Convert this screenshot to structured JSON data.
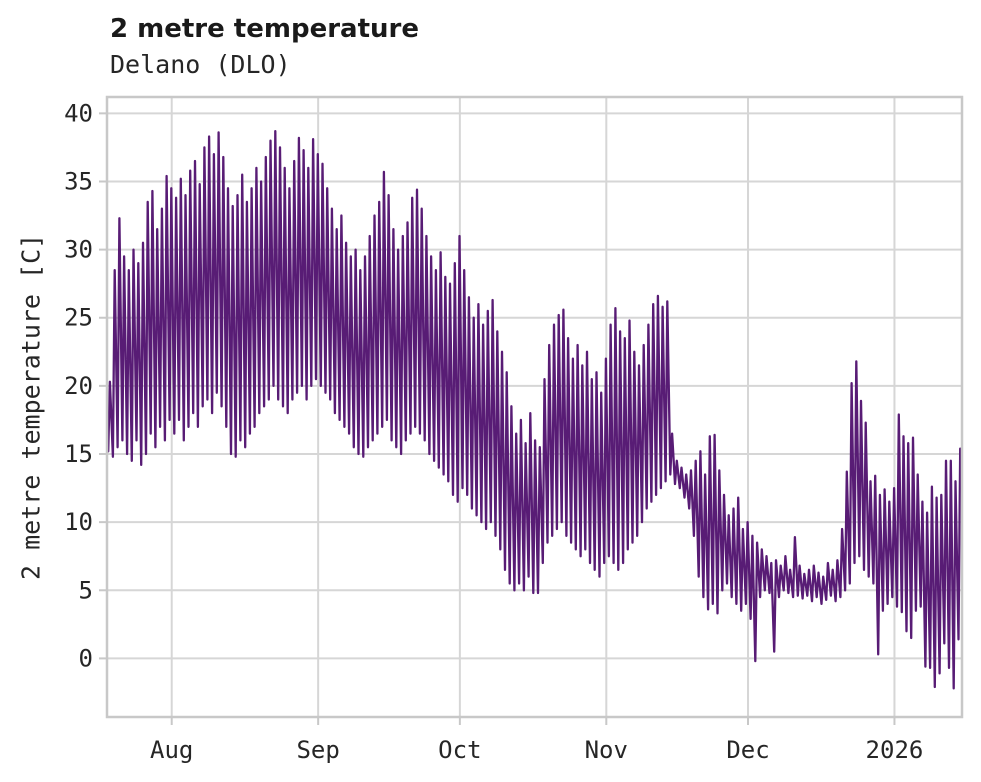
{
  "header": {
    "title": "2 metre temperature",
    "subtitle": "Delano (DLO)"
  },
  "chart_data": {
    "type": "line",
    "title": "2 metre temperature",
    "subtitle": "Delano (DLO)",
    "ylabel": "2 metre temperature [C]",
    "series_name": "2 metre temperature",
    "line_color": "#581c75",
    "grid_color": "#d6d6d6",
    "spine_color": "#c8c8c8",
    "text_color": "#262626",
    "background_color": "#ffffff",
    "grid": "on",
    "legend": "none",
    "y_ticks": [
      0,
      5,
      10,
      15,
      20,
      25,
      30,
      35,
      40
    ],
    "ylim": [
      -4.3,
      41.2
    ],
    "x_tick_labels": [
      "Aug",
      "Sep",
      "Oct",
      "Nov",
      "Dec",
      "2026"
    ],
    "x_tick_days": [
      13.7,
      44.7,
      74.7,
      105.7,
      135.7,
      166.7
    ],
    "total_days": 181,
    "x_range_note": "daily min/max envelope of hourly series; index 0 = 14 days before first Aug tick, index 180 = ~14 days after Jan tick",
    "daily_min": [
      15.2,
      14.8,
      15.5,
      16,
      15,
      14.5,
      16,
      14.2,
      15,
      16.5,
      15.5,
      17,
      16,
      17.5,
      16.5,
      17.5,
      16,
      17,
      18,
      17,
      18.5,
      19,
      18,
      19.5,
      18.5,
      17,
      15,
      14.8,
      16,
      15.5,
      16.5,
      17,
      18,
      18.5,
      19,
      20,
      19,
      18.5,
      18,
      19,
      19.5,
      20,
      19,
      20,
      20.5,
      20,
      19.5,
      19,
      18,
      17.5,
      17,
      16.5,
      15.5,
      15,
      14.8,
      15.5,
      16,
      16.5,
      17,
      17.5,
      16,
      15.5,
      15,
      16,
      16.5,
      17,
      16.5,
      16,
      15,
      14.5,
      14,
      13.5,
      13,
      12,
      11.5,
      12.5,
      12,
      11,
      10.5,
      10,
      9.5,
      10,
      9,
      8,
      6.5,
      5.5,
      5,
      5.5,
      5,
      6,
      4.8,
      4.8,
      7,
      8.5,
      9,
      9.5,
      10,
      9,
      8.5,
      8,
      7.5,
      8,
      7,
      6.5,
      6,
      7,
      7.5,
      7,
      6.5,
      7,
      8,
      8.5,
      9,
      10,
      11,
      11.5,
      12,
      12.5,
      13,
      13.5,
      12.8,
      12.5,
      11.8,
      11,
      9,
      6,
      4.5,
      3.6,
      4,
      3.3,
      5,
      5.5,
      4.5,
      4,
      3.5,
      4,
      2.9,
      -0.2,
      4.5,
      5,
      4.8,
      0.5,
      4.5,
      5,
      4.8,
      4.5,
      4.6,
      4.4,
      4.6,
      4.2,
      4.5,
      4,
      4.3,
      4.6,
      4.2,
      4.5,
      5,
      5.5,
      7,
      7.5,
      6.5,
      6,
      5.5,
      0.3,
      3.5,
      4,
      4.5,
      3.8,
      3.4,
      2,
      1.5,
      3.5,
      3.8,
      -0.6,
      -0.7,
      -2.1,
      -1.1,
      1.1,
      -0.7,
      -2.2,
      1.4
    ],
    "daily_max": [
      20.3,
      28.5,
      32.3,
      29.5,
      28.5,
      30,
      29,
      30.5,
      33.5,
      34.3,
      31.5,
      33,
      35.4,
      34.5,
      33.8,
      35.2,
      34,
      35.8,
      36.5,
      34.8,
      37.5,
      38.3,
      37,
      38.6,
      36.8,
      34.5,
      33.2,
      34,
      35.5,
      33.5,
      34.5,
      36,
      35,
      36.8,
      38,
      38.7,
      37.5,
      36,
      34.5,
      36.5,
      38.2,
      37.3,
      36,
      38.1,
      37,
      36.3,
      34.5,
      33,
      31.5,
      32.5,
      30.5,
      29.5,
      30,
      28.5,
      29.5,
      31,
      32.5,
      33.5,
      35.7,
      34,
      31.5,
      30,
      31,
      32,
      33.8,
      34.4,
      33,
      31,
      29.5,
      28.5,
      29.8,
      28,
      27.5,
      29,
      31,
      28.5,
      26.5,
      25,
      26,
      24.5,
      25.5,
      26.3,
      24,
      22.5,
      21,
      18.5,
      16.5,
      17.5,
      15.8,
      18,
      16,
      15.5,
      20.5,
      23,
      24.5,
      25.2,
      25.6,
      23.5,
      22,
      23,
      21.5,
      22.5,
      20.5,
      21,
      19.5,
      22,
      24.5,
      25.7,
      24,
      23.5,
      24.8,
      22.5,
      21.5,
      23,
      24.5,
      26,
      26.6,
      25.8,
      26.2,
      16.5,
      14.5,
      14,
      13.5,
      13.8,
      14.5,
      15.2,
      13.5,
      16.3,
      16.4,
      13.8,
      12,
      10.5,
      11,
      11.8,
      9.5,
      10,
      9,
      8.5,
      8,
      7.5,
      7,
      7.2,
      6.8,
      7.5,
      6.5,
      8.9,
      6.8,
      6.2,
      6.5,
      6.8,
      6.3,
      6,
      7,
      6.5,
      7.2,
      9.5,
      13.7,
      20.2,
      21.8,
      18.9,
      17.3,
      13,
      13.4,
      12,
      12.4,
      11.5,
      12.5,
      17.9,
      16.3,
      15.8,
      16.2,
      13.5,
      11.5,
      10.7,
      12.6,
      11.8,
      12,
      14.5,
      14.5,
      13,
      15.4
    ]
  }
}
